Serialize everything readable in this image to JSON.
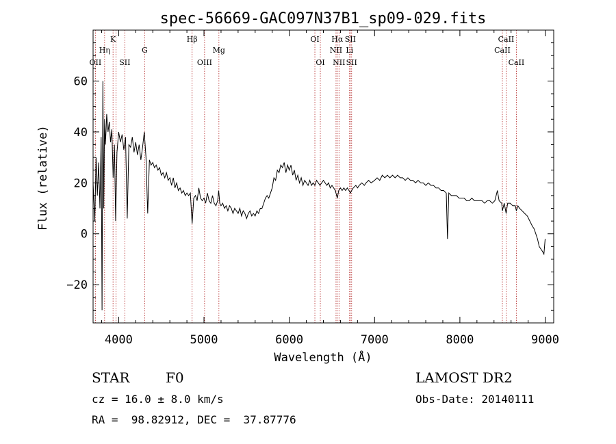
{
  "chart_data": {
    "type": "line",
    "title": "spec-56669-GAC097N37B1_sp09-029.fits",
    "xlabel": "Wavelength (Å)",
    "ylabel": "Flux (relative)",
    "xlim": [
      3700,
      9100
    ],
    "ylim": [
      -35,
      80
    ],
    "x_ticks": [
      4000,
      5000,
      6000,
      7000,
      8000,
      9000
    ],
    "y_ticks": [
      -20,
      0,
      20,
      40,
      60
    ],
    "grid": false,
    "series": [
      {
        "color": "#000000",
        "points": [
          [
            3700,
            20
          ],
          [
            3720,
            5
          ],
          [
            3735,
            30
          ],
          [
            3750,
            15
          ],
          [
            3765,
            28
          ],
          [
            3780,
            10
          ],
          [
            3795,
            38
          ],
          [
            3805,
            -30
          ],
          [
            3815,
            60
          ],
          [
            3825,
            10
          ],
          [
            3835,
            45
          ],
          [
            3845,
            35
          ],
          [
            3860,
            47
          ],
          [
            3875,
            40
          ],
          [
            3890,
            44
          ],
          [
            3905,
            36
          ],
          [
            3920,
            41
          ],
          [
            3935,
            22
          ],
          [
            3950,
            35
          ],
          [
            3965,
            5
          ],
          [
            3980,
            32
          ],
          [
            4000,
            40
          ],
          [
            4020,
            36
          ],
          [
            4040,
            39
          ],
          [
            4060,
            33
          ],
          [
            4080,
            38
          ],
          [
            4100,
            6
          ],
          [
            4120,
            35
          ],
          [
            4140,
            34
          ],
          [
            4160,
            38
          ],
          [
            4180,
            32
          ],
          [
            4200,
            36
          ],
          [
            4220,
            31
          ],
          [
            4240,
            35
          ],
          [
            4260,
            29
          ],
          [
            4280,
            34
          ],
          [
            4300,
            40
          ],
          [
            4320,
            30
          ],
          [
            4340,
            8
          ],
          [
            4360,
            29
          ],
          [
            4380,
            27
          ],
          [
            4400,
            28
          ],
          [
            4420,
            26
          ],
          [
            4440,
            27
          ],
          [
            4460,
            25
          ],
          [
            4480,
            26
          ],
          [
            4500,
            23
          ],
          [
            4520,
            24
          ],
          [
            4540,
            22
          ],
          [
            4560,
            24
          ],
          [
            4580,
            21
          ],
          [
            4600,
            22
          ],
          [
            4620,
            19
          ],
          [
            4640,
            22
          ],
          [
            4660,
            18
          ],
          [
            4680,
            20
          ],
          [
            4700,
            17
          ],
          [
            4720,
            18
          ],
          [
            4740,
            16
          ],
          [
            4760,
            17
          ],
          [
            4780,
            15
          ],
          [
            4800,
            16
          ],
          [
            4820,
            15
          ],
          [
            4840,
            16
          ],
          [
            4861,
            4
          ],
          [
            4880,
            14
          ],
          [
            4900,
            15
          ],
          [
            4920,
            13
          ],
          [
            4940,
            18
          ],
          [
            4960,
            14
          ],
          [
            4980,
            13
          ],
          [
            5000,
            14
          ],
          [
            5020,
            12
          ],
          [
            5040,
            16
          ],
          [
            5060,
            13
          ],
          [
            5080,
            12
          ],
          [
            5100,
            15
          ],
          [
            5120,
            12
          ],
          [
            5140,
            11
          ],
          [
            5160,
            13
          ],
          [
            5172,
            17
          ],
          [
            5185,
            12
          ],
          [
            5200,
            11
          ],
          [
            5220,
            12
          ],
          [
            5240,
            10
          ],
          [
            5260,
            11
          ],
          [
            5280,
            9
          ],
          [
            5300,
            11
          ],
          [
            5320,
            10
          ],
          [
            5340,
            8
          ],
          [
            5360,
            10
          ],
          [
            5380,
            9
          ],
          [
            5400,
            8
          ],
          [
            5420,
            10
          ],
          [
            5440,
            7
          ],
          [
            5460,
            9
          ],
          [
            5480,
            8
          ],
          [
            5500,
            6
          ],
          [
            5520,
            8
          ],
          [
            5540,
            9
          ],
          [
            5560,
            7
          ],
          [
            5580,
            8
          ],
          [
            5600,
            7
          ],
          [
            5620,
            9
          ],
          [
            5640,
            8
          ],
          [
            5660,
            10
          ],
          [
            5680,
            10
          ],
          [
            5700,
            12
          ],
          [
            5720,
            14
          ],
          [
            5740,
            15
          ],
          [
            5760,
            14
          ],
          [
            5780,
            16
          ],
          [
            5800,
            18
          ],
          [
            5820,
            22
          ],
          [
            5840,
            21
          ],
          [
            5860,
            25
          ],
          [
            5880,
            24
          ],
          [
            5900,
            27
          ],
          [
            5920,
            26
          ],
          [
            5940,
            28
          ],
          [
            5960,
            24
          ],
          [
            5980,
            27
          ],
          [
            6000,
            25
          ],
          [
            6020,
            27
          ],
          [
            6040,
            23
          ],
          [
            6060,
            25
          ],
          [
            6080,
            21
          ],
          [
            6100,
            23
          ],
          [
            6120,
            20
          ],
          [
            6140,
            22
          ],
          [
            6160,
            19
          ],
          [
            6180,
            21
          ],
          [
            6200,
            20
          ],
          [
            6220,
            19
          ],
          [
            6240,
            21
          ],
          [
            6260,
            19
          ],
          [
            6280,
            20
          ],
          [
            6300,
            19
          ],
          [
            6320,
            21
          ],
          [
            6340,
            20
          ],
          [
            6360,
            19
          ],
          [
            6380,
            20
          ],
          [
            6400,
            21
          ],
          [
            6420,
            20
          ],
          [
            6440,
            19
          ],
          [
            6460,
            20
          ],
          [
            6480,
            18
          ],
          [
            6500,
            19
          ],
          [
            6520,
            18
          ],
          [
            6540,
            17
          ],
          [
            6563,
            14
          ],
          [
            6580,
            17
          ],
          [
            6600,
            18
          ],
          [
            6620,
            17
          ],
          [
            6640,
            18
          ],
          [
            6660,
            17
          ],
          [
            6680,
            18
          ],
          [
            6700,
            17
          ],
          [
            6717,
            16
          ],
          [
            6731,
            17
          ],
          [
            6750,
            18
          ],
          [
            6780,
            19
          ],
          [
            6800,
            18
          ],
          [
            6820,
            19
          ],
          [
            6850,
            20
          ],
          [
            6880,
            19
          ],
          [
            6900,
            20
          ],
          [
            6930,
            21
          ],
          [
            6960,
            20
          ],
          [
            7000,
            21
          ],
          [
            7030,
            22
          ],
          [
            7060,
            21
          ],
          [
            7090,
            23
          ],
          [
            7120,
            22
          ],
          [
            7150,
            23
          ],
          [
            7180,
            22
          ],
          [
            7210,
            23
          ],
          [
            7240,
            22
          ],
          [
            7270,
            23
          ],
          [
            7300,
            22
          ],
          [
            7330,
            22
          ],
          [
            7360,
            21
          ],
          [
            7390,
            22
          ],
          [
            7420,
            21
          ],
          [
            7450,
            21
          ],
          [
            7480,
            20
          ],
          [
            7510,
            21
          ],
          [
            7540,
            20
          ],
          [
            7570,
            20
          ],
          [
            7600,
            19
          ],
          [
            7630,
            20
          ],
          [
            7660,
            19
          ],
          [
            7690,
            19
          ],
          [
            7720,
            18
          ],
          [
            7750,
            18
          ],
          [
            7780,
            17
          ],
          [
            7810,
            17
          ],
          [
            7840,
            16
          ],
          [
            7855,
            -2
          ],
          [
            7870,
            16
          ],
          [
            7900,
            15
          ],
          [
            7930,
            15
          ],
          [
            7960,
            15
          ],
          [
            7990,
            14
          ],
          [
            8020,
            14
          ],
          [
            8050,
            14
          ],
          [
            8080,
            13
          ],
          [
            8110,
            13
          ],
          [
            8140,
            14
          ],
          [
            8170,
            13
          ],
          [
            8200,
            13
          ],
          [
            8230,
            13
          ],
          [
            8260,
            13
          ],
          [
            8290,
            12
          ],
          [
            8320,
            13
          ],
          [
            8350,
            13
          ],
          [
            8380,
            12
          ],
          [
            8410,
            13
          ],
          [
            8440,
            17
          ],
          [
            8460,
            13
          ],
          [
            8490,
            12
          ],
          [
            8498,
            9
          ],
          [
            8520,
            12
          ],
          [
            8542,
            8
          ],
          [
            8560,
            12
          ],
          [
            8590,
            12
          ],
          [
            8620,
            11
          ],
          [
            8650,
            11
          ],
          [
            8662,
            9
          ],
          [
            8680,
            11
          ],
          [
            8700,
            10
          ],
          [
            8730,
            9
          ],
          [
            8760,
            8
          ],
          [
            8790,
            7
          ],
          [
            8820,
            5
          ],
          [
            8850,
            3
          ],
          [
            8870,
            2
          ],
          [
            8890,
            0
          ],
          [
            8910,
            -2
          ],
          [
            8930,
            -5
          ],
          [
            8950,
            -6
          ],
          [
            8970,
            -7
          ],
          [
            8985,
            -8
          ],
          [
            9000,
            -2
          ]
        ]
      }
    ],
    "reference_lines": [
      {
        "x": 3727,
        "label": "OII",
        "row": 3
      },
      {
        "x": 3835,
        "label": "Hη",
        "row": 2
      },
      {
        "x": 3934,
        "label": "K",
        "row": 1
      },
      {
        "x": 3968,
        "label": "",
        "row": 0
      },
      {
        "x": 4072,
        "label": "SII",
        "row": 3
      },
      {
        "x": 4305,
        "label": "G",
        "row": 2
      },
      {
        "x": 4861,
        "label": "Hβ",
        "row": 1
      },
      {
        "x": 5007,
        "label": "OIII",
        "row": 3
      },
      {
        "x": 5175,
        "label": "Mg",
        "row": 2
      },
      {
        "x": 6300,
        "label": "OI",
        "row": 1
      },
      {
        "x": 6364,
        "label": "OI",
        "row": 3
      },
      {
        "x": 6548,
        "label": "NII",
        "row": 2
      },
      {
        "x": 6563,
        "label": "Hα",
        "row": 1
      },
      {
        "x": 6583,
        "label": "NII",
        "row": 3
      },
      {
        "x": 6707,
        "label": "Li",
        "row": 2
      },
      {
        "x": 6716,
        "label": "SII",
        "row": 1
      },
      {
        "x": 6731,
        "label": "SII",
        "row": 3
      },
      {
        "x": 8498,
        "label": "CaII",
        "row": 2
      },
      {
        "x": 8542,
        "label": "CaII",
        "row": 1
      },
      {
        "x": 8662,
        "label": "CaII",
        "row": 3
      }
    ]
  },
  "info": {
    "class_label": "STAR",
    "subclass_label": "F0",
    "survey_label": "LAMOST DR2",
    "redshift_text": "cz = 16.0 ± 8.0 km/s",
    "obs_date_text": "Obs-Date: 20140111",
    "coords_text": "RA =  98.82912, DEC =  37.87776"
  }
}
